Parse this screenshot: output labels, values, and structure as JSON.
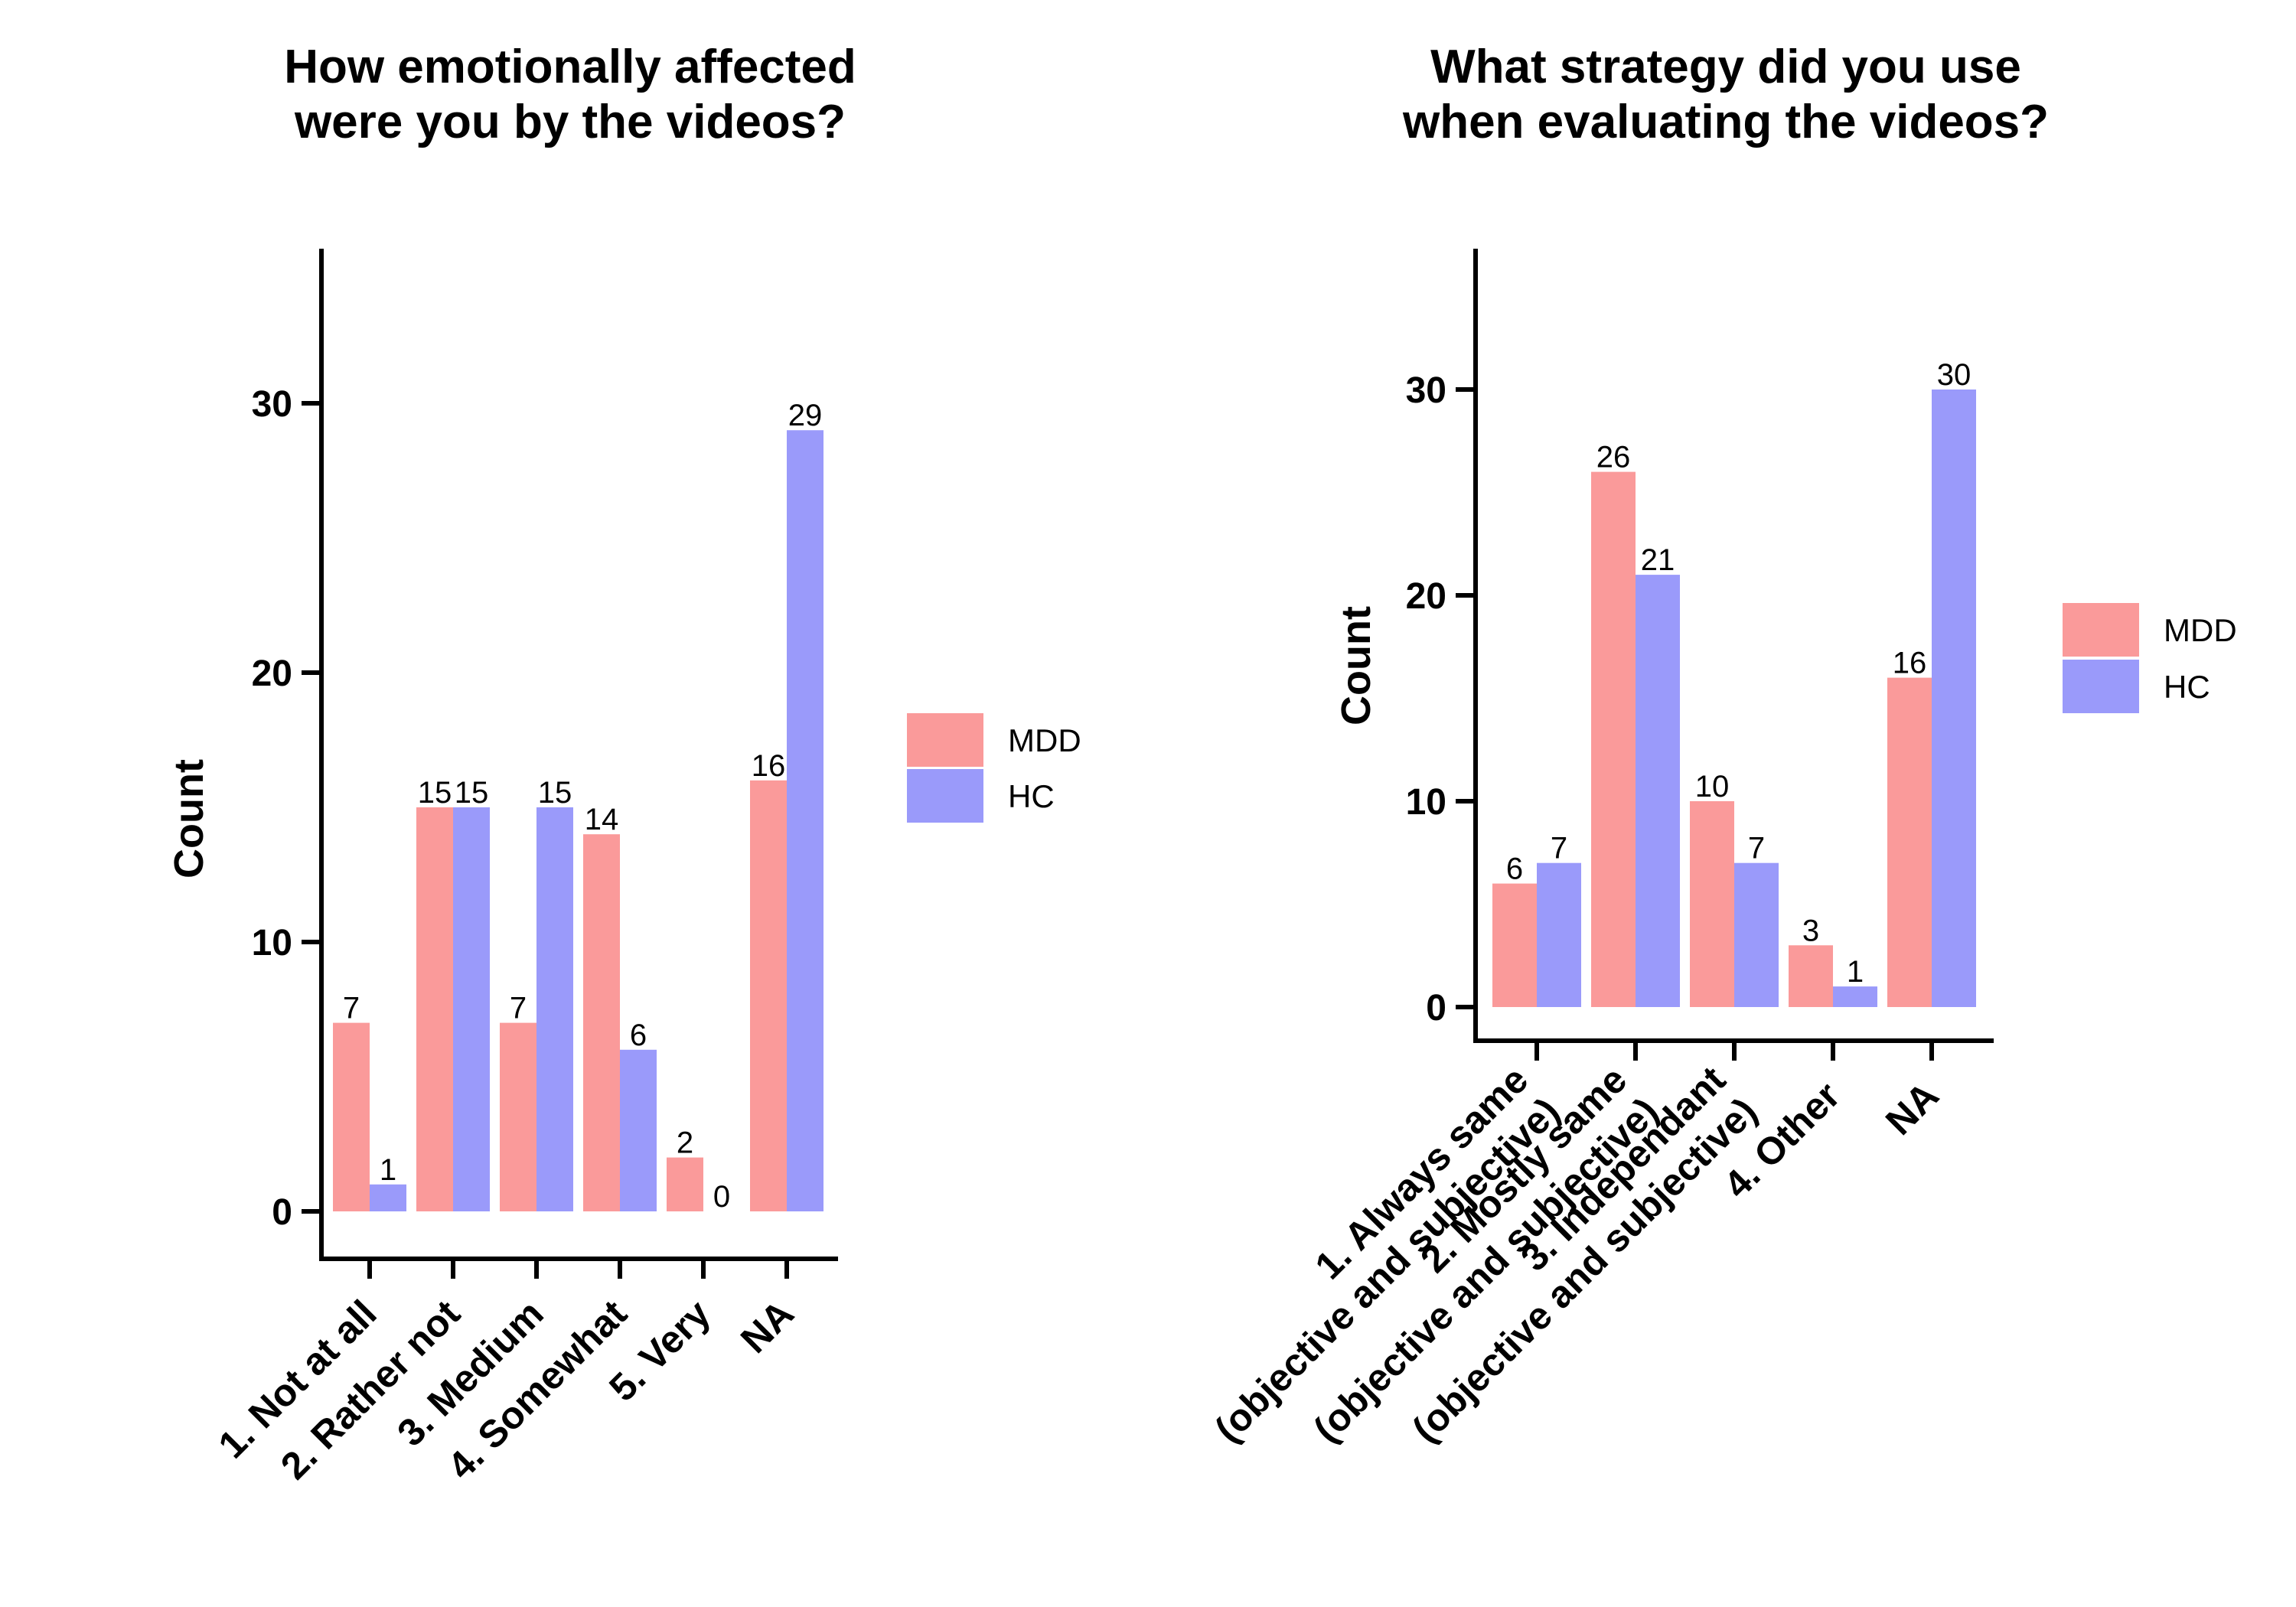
{
  "colors": {
    "MDD": "#fa9a9a",
    "HC": "#9a9afa",
    "axis": "#000000"
  },
  "chart_data": [
    {
      "type": "bar",
      "title": "How emotionally affected\nwere you by the videos?",
      "xlabel": "",
      "ylabel": "Count",
      "ylim": [
        -2,
        36
      ],
      "yticks": [
        0,
        10,
        20,
        30
      ],
      "grid": false,
      "legend": "right",
      "categories": [
        "1. Not at all",
        "2. Rather not",
        "3. Medium",
        "4. Somewhat",
        "5. Very",
        "NA"
      ],
      "series": [
        {
          "name": "MDD",
          "values": [
            7,
            15,
            7,
            14,
            2,
            16
          ]
        },
        {
          "name": "HC",
          "values": [
            1,
            15,
            15,
            6,
            0,
            29
          ]
        }
      ]
    },
    {
      "type": "bar",
      "title": "What strategy did you use\nwhen evaluating the videos?",
      "xlabel": "",
      "ylabel": "Count",
      "ylim": [
        -2,
        37
      ],
      "yticks": [
        0,
        10,
        20,
        30
      ],
      "grid": false,
      "legend": "right",
      "categories": [
        "1. Always same\n(objective and subjective)",
        "2. Mostly same\n(objective and subjective)",
        "3. Independant\n(objective and subjective)",
        "4. Other",
        "NA"
      ],
      "series": [
        {
          "name": "MDD",
          "values": [
            6,
            26,
            10,
            3,
            16
          ]
        },
        {
          "name": "HC",
          "values": [
            7,
            21,
            7,
            1,
            30
          ]
        }
      ]
    }
  ]
}
